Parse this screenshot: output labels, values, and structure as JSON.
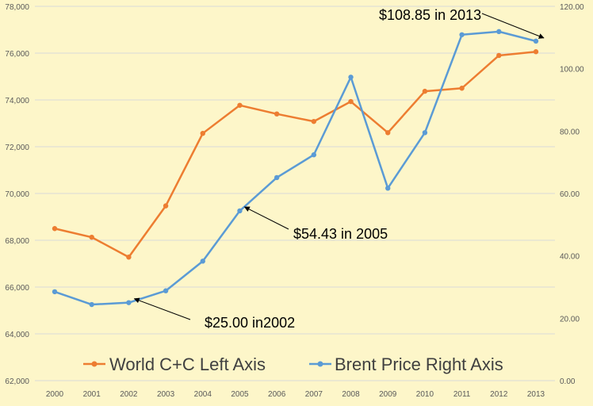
{
  "chart_data": {
    "type": "line",
    "title": "",
    "categories": [
      "2000",
      "2001",
      "2002",
      "2003",
      "2004",
      "2005",
      "2006",
      "2007",
      "2008",
      "2009",
      "2010",
      "2011",
      "2012",
      "2013"
    ],
    "y_left": {
      "min": 62000,
      "max": 78000,
      "step": 2000,
      "tick_labels": [
        "62,000",
        "64,000",
        "66,000",
        "68,000",
        "70,000",
        "72,000",
        "74,000",
        "76,000",
        "78,000"
      ]
    },
    "y_right": {
      "min": 0,
      "max": 120,
      "step": 20,
      "tick_labels": [
        "0.00",
        "20.00",
        "40.00",
        "60.00",
        "80.00",
        "100.00",
        "120.00"
      ]
    },
    "grid": "horizontal",
    "legend_position": "bottom-inside",
    "series": [
      {
        "name": "World C+C Left Axis",
        "axis": "left",
        "color": "#ed7d31",
        "values": [
          68500,
          68130,
          67280,
          69470,
          72570,
          73770,
          73400,
          73080,
          73930,
          72600,
          74370,
          74500,
          75900,
          76060
        ]
      },
      {
        "name": "Brent Price Right Axis",
        "axis": "right",
        "color": "#5b9bd5",
        "values": [
          28.5,
          24.4,
          25.0,
          28.8,
          38.3,
          54.43,
          65.1,
          72.4,
          97.3,
          61.7,
          79.5,
          110.9,
          111.9,
          108.85
        ]
      }
    ],
    "annotations": [
      {
        "text": "$108.85 in 2013",
        "category": "2013",
        "series": 1
      },
      {
        "text": "$54.43 in 2005",
        "category": "2005",
        "series": 1
      },
      {
        "text": "$25.00 in2002",
        "category": "2002",
        "series": 1
      }
    ]
  }
}
